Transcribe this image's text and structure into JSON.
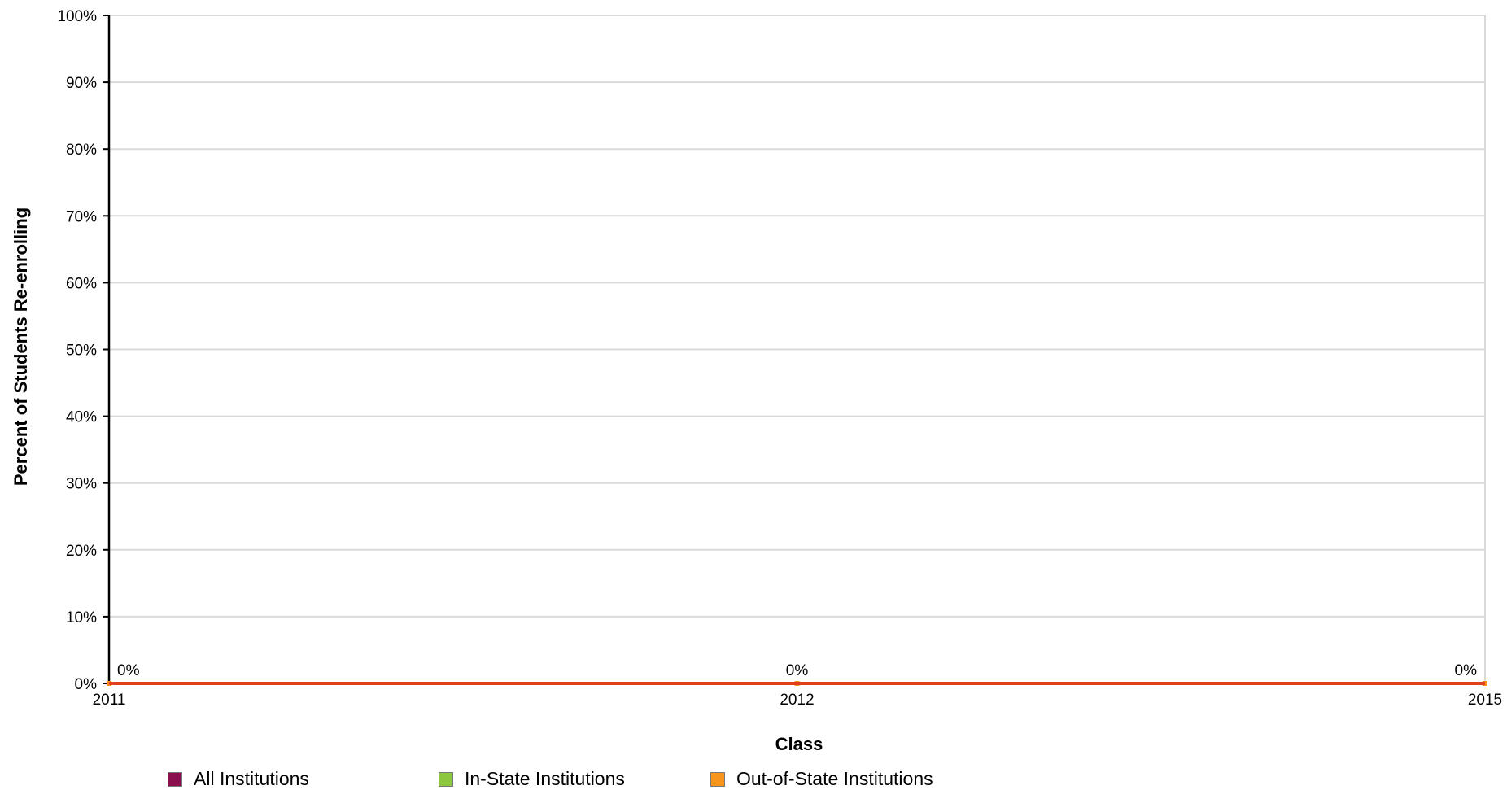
{
  "chart_data": {
    "type": "line",
    "title": "",
    "xlabel": "Class",
    "ylabel": "Percent of Students Re-enrolling",
    "x": [
      "2011",
      "2012",
      "2015"
    ],
    "ylim": [
      0,
      100
    ],
    "yticks": [
      "0%",
      "10%",
      "20%",
      "30%",
      "40%",
      "50%",
      "60%",
      "70%",
      "80%",
      "90%",
      "100%"
    ],
    "grid": true,
    "legend_position": "bottom",
    "series": [
      {
        "name": "All Institutions",
        "color": "#8b0f4f",
        "values": [
          0,
          0,
          0
        ],
        "data_labels": []
      },
      {
        "name": "In-State Institutions",
        "color": "#8dc63f",
        "values": [
          0,
          0,
          0
        ],
        "data_labels": []
      },
      {
        "name": "Out-of-State Institutions",
        "color": "#f7941d",
        "values": [
          0,
          0,
          0
        ],
        "data_labels": [
          "0%",
          "0%",
          "0%"
        ]
      }
    ]
  }
}
